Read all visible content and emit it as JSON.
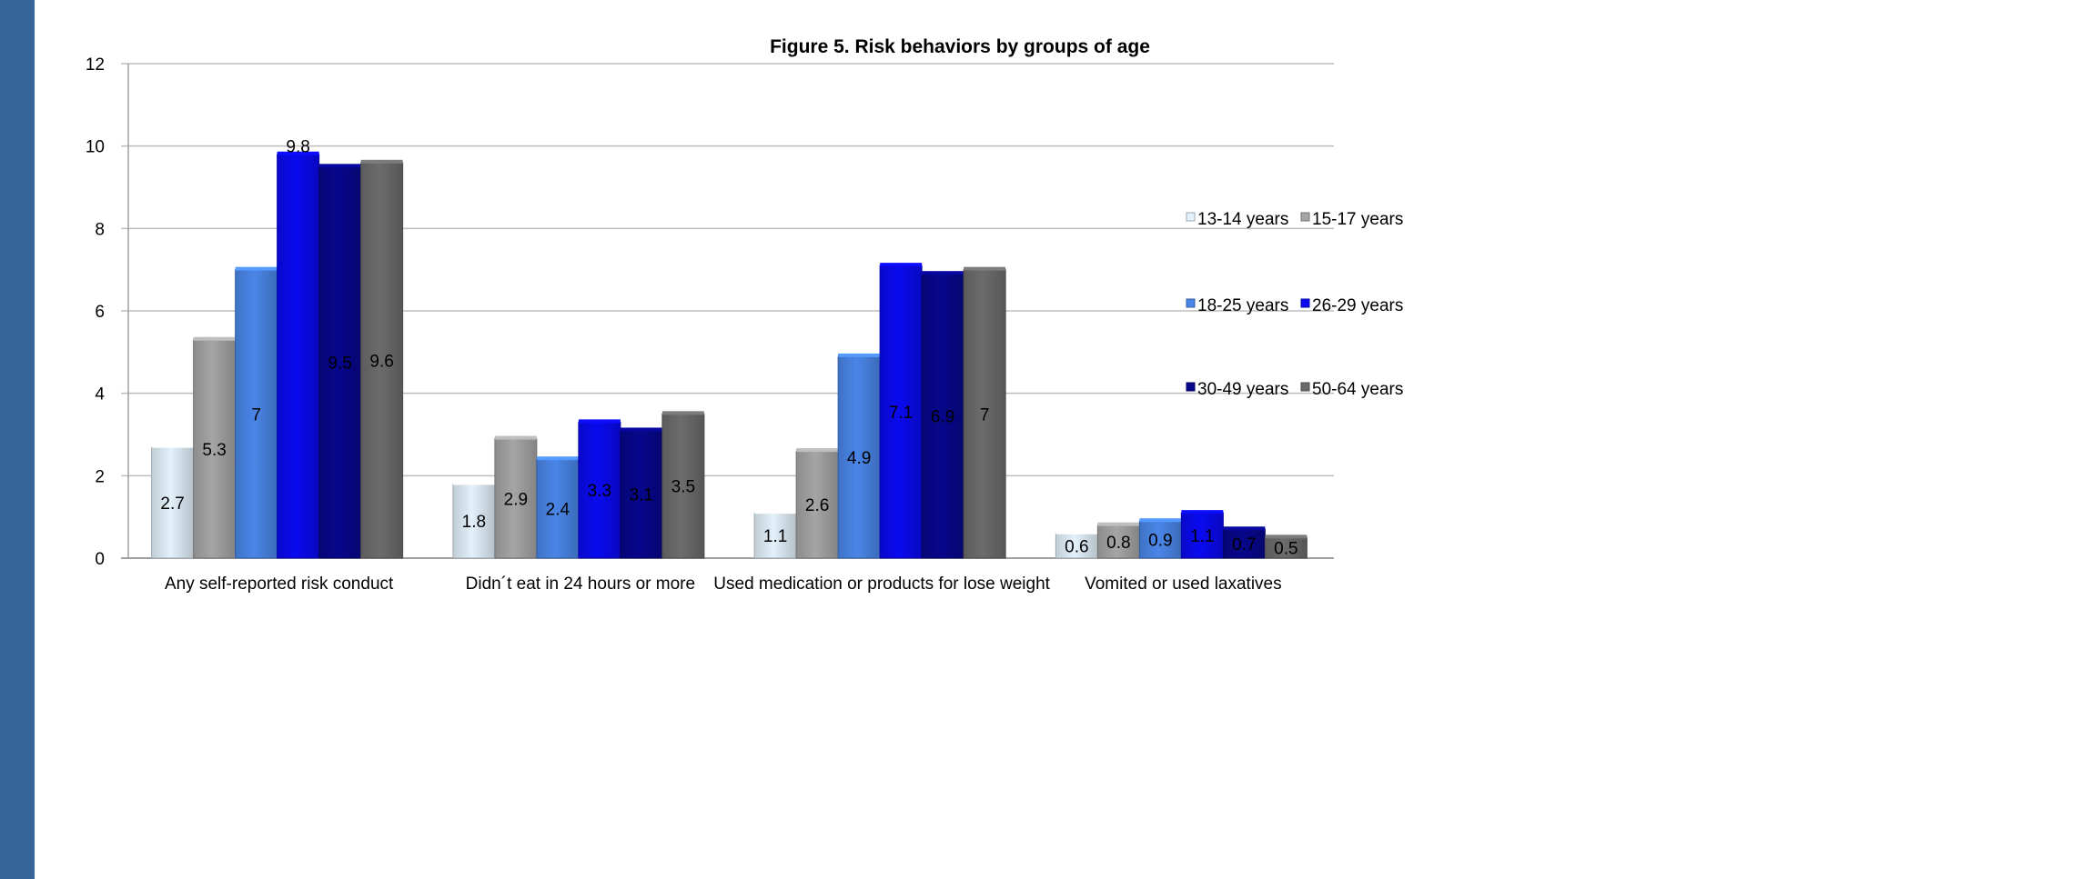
{
  "chart_data": {
    "type": "bar",
    "title": "Figure 5. Risk behaviors by groups of age",
    "xlabel": "",
    "ylabel": "",
    "ylim": [
      0,
      12
    ],
    "yticks": [
      "0",
      "2",
      "4",
      "6",
      "8",
      "10",
      "12"
    ],
    "grid": true,
    "legend_position": "right",
    "categories": [
      "Any self-reported risk conduct",
      "Didn´t eat in 24 hours or more",
      "Used medication or products for lose weight",
      "Vomited or used laxatives"
    ],
    "series": [
      {
        "name": "13-14 years",
        "color": "#e3f1fb",
        "values": [
          2.7,
          1.8,
          1.1,
          0.6
        ],
        "labels": [
          "2.7",
          "1.8",
          "1.1",
          "0.6"
        ]
      },
      {
        "name": "15-17 years",
        "color": "#a5a5a5",
        "values": [
          5.3,
          2.9,
          2.6,
          0.8
        ],
        "labels": [
          "5.3",
          "2.9",
          "2.6",
          "0.8"
        ]
      },
      {
        "name": "18-25 years",
        "color": "#4a86e8",
        "values": [
          7,
          2.4,
          4.9,
          0.9
        ],
        "labels": [
          "7",
          "2.4",
          "4.9",
          "0.9"
        ]
      },
      {
        "name": "26-29 years",
        "color": "#0a0af0",
        "values": [
          9.8,
          3.3,
          7.1,
          1.1
        ],
        "labels": [
          "9.8",
          "3.3",
          "7.1",
          "1.1"
        ]
      },
      {
        "name": "30-49 years",
        "color": "#07078c",
        "values": [
          9.5,
          3.1,
          6.9,
          0.7
        ],
        "labels": [
          "9.5",
          "3.1",
          "6.9",
          "0.7"
        ]
      },
      {
        "name": "50-64 years",
        "color": "#6c6c6c",
        "values": [
          9.6,
          3.5,
          7,
          0.5
        ],
        "labels": [
          "9.6",
          "3.5",
          "7",
          "0.5"
        ]
      }
    ]
  }
}
